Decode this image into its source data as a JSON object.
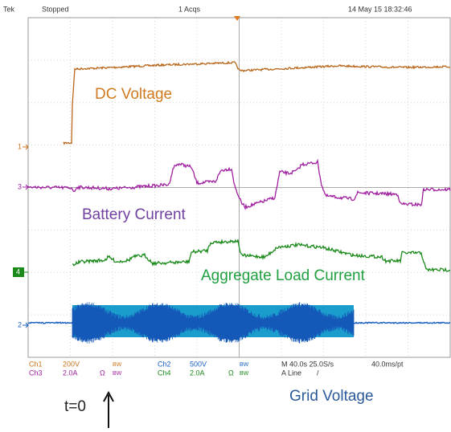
{
  "header": {
    "brand": "Tek",
    "state": "Stopped",
    "acqs": "1 Acqs",
    "timestamp": "14 May 15 18:32:46"
  },
  "markers": [
    "1",
    "3",
    "4",
    "2"
  ],
  "labels": {
    "dc": "DC Voltage",
    "battery": "Battery Current",
    "load": "Aggregate  Load Current",
    "grid": "Grid Voltage",
    "t0": "t=0"
  },
  "status": {
    "ch1": "Ch1",
    "ch1_scale": "200V",
    "ch2": "Ch2",
    "ch2_scale": "500V",
    "ch3": "Ch3",
    "ch3_scale": "2.0A",
    "ch4": "Ch4",
    "ch4_scale": "2.0A",
    "bw": "BW",
    "ohm": "Ω",
    "timebase": "M 40.0s 25.0S/s",
    "trigger": "A Line",
    "trigger_slope": "/",
    "record": "40.0ms/pt"
  }
}
